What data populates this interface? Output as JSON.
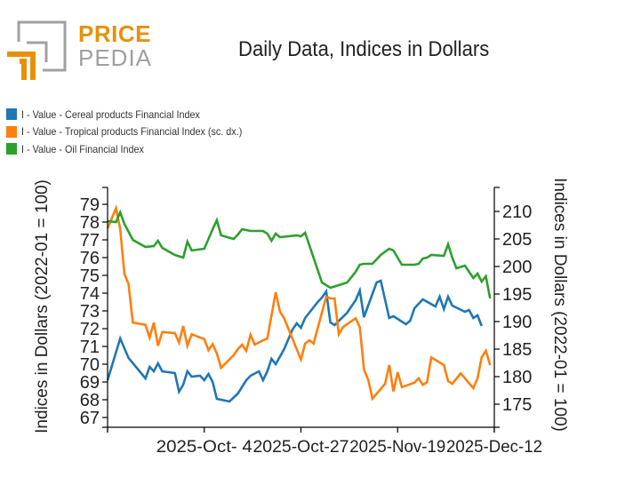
{
  "logo": {
    "word1": "PRICE",
    "word2": "PEDIA",
    "primary_color": "#e8900c",
    "secondary_color": "#a0a0a0"
  },
  "chart_data": {
    "type": "line",
    "title": "Daily Data, Indices in Dollars",
    "ylabel": "Indices in Dollars (2022-01 = 100)",
    "ylabel_right": "Indices in Dollars (2022-01 = 100)",
    "xlabel": "",
    "ylim": [
      66.5,
      80.0
    ],
    "ylim_right": [
      171.3,
      214.9
    ],
    "yticks": [
      67,
      68,
      69,
      70,
      71,
      72,
      73,
      74,
      75,
      76,
      77,
      78,
      79
    ],
    "yticks_right": [
      175,
      180,
      185,
      190,
      195,
      200,
      205,
      210
    ],
    "x_start": "2025-09-11",
    "x_end": "2025-12-14",
    "xticks": [
      {
        "date": "2025-09-11",
        "label": ""
      },
      {
        "date": "2025-10-04",
        "label": "2025-Oct- 4"
      },
      {
        "date": "2025-10-27",
        "label": "2025-Oct-27"
      },
      {
        "date": "2025-11-19",
        "label": "2025-Nov-19"
      },
      {
        "date": "2025-12-12",
        "label": "2025-Dec-12"
      }
    ],
    "grid": false,
    "legend_position": "top-left",
    "series": [
      {
        "name": "I - Value - Cereal products Financial Index",
        "color": "#1f77b4",
        "axis": "left",
        "points": [
          [
            "2025-09-11",
            69.1
          ],
          [
            "2025-09-14",
            71.45
          ],
          [
            "2025-09-16",
            70.35
          ],
          [
            "2025-09-20",
            69.2
          ],
          [
            "2025-09-21",
            69.85
          ],
          [
            "2025-09-22",
            69.6
          ],
          [
            "2025-09-23",
            70.05
          ],
          [
            "2025-09-24",
            69.6
          ],
          [
            "2025-09-27",
            69.5
          ],
          [
            "2025-09-28",
            68.45
          ],
          [
            "2025-09-29",
            68.85
          ],
          [
            "2025-09-30",
            69.6
          ],
          [
            "2025-10-01",
            69.3
          ],
          [
            "2025-10-03",
            69.35
          ],
          [
            "2025-10-04",
            69.1
          ],
          [
            "2025-10-05",
            69.45
          ],
          [
            "2025-10-06",
            69.0
          ],
          [
            "2025-10-07",
            68.05
          ],
          [
            "2025-10-10",
            67.9
          ],
          [
            "2025-10-12",
            68.35
          ],
          [
            "2025-10-14",
            69.1
          ],
          [
            "2025-10-15",
            69.35
          ],
          [
            "2025-10-17",
            69.6
          ],
          [
            "2025-10-18",
            69.1
          ],
          [
            "2025-10-19",
            69.6
          ],
          [
            "2025-10-20",
            70.3
          ],
          [
            "2025-10-21",
            70.0
          ],
          [
            "2025-10-23",
            70.85
          ],
          [
            "2025-10-25",
            71.95
          ],
          [
            "2025-10-26",
            72.3
          ],
          [
            "2025-10-27",
            72.05
          ],
          [
            "2025-10-28",
            72.6
          ],
          [
            "2025-10-31",
            73.5
          ],
          [
            "2025-11-01",
            73.75
          ],
          [
            "2025-11-02",
            74.1
          ],
          [
            "2025-11-03",
            72.35
          ],
          [
            "2025-11-04",
            72.2
          ],
          [
            "2025-11-07",
            72.9
          ],
          [
            "2025-11-08",
            73.25
          ],
          [
            "2025-11-09",
            73.6
          ],
          [
            "2025-11-10",
            74.15
          ],
          [
            "2025-11-11",
            72.65
          ],
          [
            "2025-11-14",
            74.6
          ],
          [
            "2025-11-15",
            74.7
          ],
          [
            "2025-11-17",
            72.6
          ],
          [
            "2025-11-18",
            72.7
          ],
          [
            "2025-11-21",
            72.25
          ],
          [
            "2025-11-22",
            72.45
          ],
          [
            "2025-11-23",
            73.15
          ],
          [
            "2025-11-25",
            73.65
          ],
          [
            "2025-11-28",
            73.25
          ],
          [
            "2025-11-29",
            73.8
          ],
          [
            "2025-11-30",
            73.1
          ],
          [
            "2025-12-01",
            73.8
          ],
          [
            "2025-12-02",
            73.3
          ],
          [
            "2025-12-05",
            72.95
          ],
          [
            "2025-12-06",
            73.05
          ],
          [
            "2025-12-07",
            72.6
          ],
          [
            "2025-12-08",
            72.75
          ],
          [
            "2025-12-09",
            72.15
          ]
        ]
      },
      {
        "name": "I - Value - Tropical products Financial Index (sc. dx.)",
        "color": "#ff7f0e",
        "axis": "right",
        "points": [
          [
            "2025-09-11",
            206.9
          ],
          [
            "2025-09-13",
            210.6
          ],
          [
            "2025-09-14",
            206.8
          ],
          [
            "2025-09-15",
            198.7
          ],
          [
            "2025-09-16",
            196.8
          ],
          [
            "2025-09-17",
            189.8
          ],
          [
            "2025-09-20",
            189.4
          ],
          [
            "2025-09-21",
            187.1
          ],
          [
            "2025-09-22",
            189.8
          ],
          [
            "2025-09-23",
            185.6
          ],
          [
            "2025-09-24",
            188.1
          ],
          [
            "2025-09-27",
            187.9
          ],
          [
            "2025-09-28",
            186.2
          ],
          [
            "2025-09-29",
            189.2
          ],
          [
            "2025-09-30",
            185.6
          ],
          [
            "2025-10-01",
            187.7
          ],
          [
            "2025-10-04",
            186.8
          ],
          [
            "2025-10-05",
            184.8
          ],
          [
            "2025-10-06",
            185.9
          ],
          [
            "2025-10-07",
            184.2
          ],
          [
            "2025-10-08",
            181.6
          ],
          [
            "2025-10-11",
            183.9
          ],
          [
            "2025-10-12",
            185.0
          ],
          [
            "2025-10-13",
            185.8
          ],
          [
            "2025-10-14",
            184.7
          ],
          [
            "2025-10-15",
            187.6
          ],
          [
            "2025-10-16",
            185.8
          ],
          [
            "2025-10-18",
            186.6
          ],
          [
            "2025-10-19",
            186.9
          ],
          [
            "2025-10-21",
            195.3
          ],
          [
            "2025-10-22",
            191.8
          ],
          [
            "2025-10-23",
            190.6
          ],
          [
            "2025-10-27",
            183.1
          ],
          [
            "2025-10-28",
            186.0
          ],
          [
            "2025-10-29",
            186.6
          ],
          [
            "2025-10-30",
            186.0
          ],
          [
            "2025-11-02",
            194.5
          ],
          [
            "2025-11-03",
            194.2
          ],
          [
            "2025-11-04",
            194.2
          ],
          [
            "2025-11-05",
            187.7
          ],
          [
            "2025-11-06",
            189.0
          ],
          [
            "2025-11-09",
            190.6
          ],
          [
            "2025-11-10",
            189.0
          ],
          [
            "2025-11-11",
            181.3
          ],
          [
            "2025-11-12",
            179.4
          ],
          [
            "2025-11-13",
            176.0
          ],
          [
            "2025-11-16",
            178.7
          ],
          [
            "2025-11-17",
            182.1
          ],
          [
            "2025-11-18",
            177.3
          ],
          [
            "2025-11-19",
            180.8
          ],
          [
            "2025-11-20",
            178.1
          ],
          [
            "2025-11-23",
            178.9
          ],
          [
            "2025-11-24",
            179.7
          ],
          [
            "2025-11-25",
            178.5
          ],
          [
            "2025-11-26",
            179.0
          ],
          [
            "2025-11-27",
            183.5
          ],
          [
            "2025-11-30",
            182.1
          ],
          [
            "2025-12-01",
            179.2
          ],
          [
            "2025-12-02",
            178.7
          ],
          [
            "2025-12-04",
            180.6
          ],
          [
            "2025-12-07",
            177.9
          ],
          [
            "2025-12-08",
            179.7
          ],
          [
            "2025-12-09",
            183.5
          ],
          [
            "2025-12-10",
            184.7
          ],
          [
            "2025-12-11",
            182.1
          ]
        ]
      },
      {
        "name": "I - Value - Oil Financial Index",
        "color": "#2ca02c",
        "axis": "left",
        "points": [
          [
            "2025-09-11",
            78.05
          ],
          [
            "2025-09-13",
            78.0
          ],
          [
            "2025-09-14",
            78.55
          ],
          [
            "2025-09-15",
            77.9
          ],
          [
            "2025-09-17",
            77.0
          ],
          [
            "2025-09-20",
            76.6
          ],
          [
            "2025-09-22",
            76.65
          ],
          [
            "2025-09-23",
            76.95
          ],
          [
            "2025-09-24",
            76.55
          ],
          [
            "2025-09-27",
            76.15
          ],
          [
            "2025-09-29",
            76.0
          ],
          [
            "2025-09-30",
            76.9
          ],
          [
            "2025-10-01",
            76.4
          ],
          [
            "2025-10-04",
            76.5
          ],
          [
            "2025-10-06",
            77.6
          ],
          [
            "2025-10-07",
            78.1
          ],
          [
            "2025-10-08",
            77.25
          ],
          [
            "2025-10-11",
            77.05
          ],
          [
            "2025-10-12",
            77.3
          ],
          [
            "2025-10-13",
            77.6
          ],
          [
            "2025-10-15",
            77.5
          ],
          [
            "2025-10-18",
            77.5
          ],
          [
            "2025-10-19",
            77.35
          ],
          [
            "2025-10-20",
            76.95
          ],
          [
            "2025-10-21",
            77.35
          ],
          [
            "2025-10-22",
            77.15
          ],
          [
            "2025-10-26",
            77.25
          ],
          [
            "2025-10-27",
            77.2
          ],
          [
            "2025-10-28",
            77.4
          ],
          [
            "2025-11-01",
            74.6
          ],
          [
            "2025-11-03",
            74.3
          ],
          [
            "2025-11-05",
            74.45
          ],
          [
            "2025-11-07",
            74.6
          ],
          [
            "2025-11-09",
            75.2
          ],
          [
            "2025-11-10",
            75.6
          ],
          [
            "2025-11-11",
            75.65
          ],
          [
            "2025-11-13",
            75.65
          ],
          [
            "2025-11-15",
            76.15
          ],
          [
            "2025-11-17",
            76.5
          ],
          [
            "2025-11-18",
            76.4
          ],
          [
            "2025-11-20",
            75.6
          ],
          [
            "2025-11-23",
            75.6
          ],
          [
            "2025-11-24",
            75.65
          ],
          [
            "2025-11-25",
            75.95
          ],
          [
            "2025-11-26",
            76.0
          ],
          [
            "2025-11-27",
            76.15
          ],
          [
            "2025-11-30",
            76.1
          ],
          [
            "2025-12-01",
            76.75
          ],
          [
            "2025-12-02",
            76.0
          ],
          [
            "2025-12-03",
            75.4
          ],
          [
            "2025-12-05",
            75.55
          ],
          [
            "2025-12-07",
            74.85
          ],
          [
            "2025-12-08",
            75.1
          ],
          [
            "2025-12-09",
            74.65
          ],
          [
            "2025-12-10",
            74.95
          ],
          [
            "2025-12-11",
            73.7
          ]
        ]
      }
    ]
  }
}
